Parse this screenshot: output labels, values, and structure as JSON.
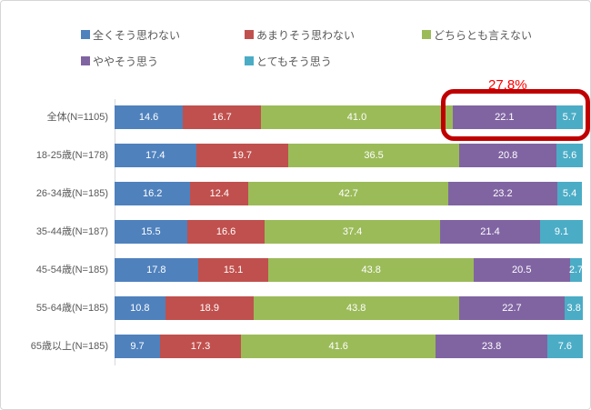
{
  "annotation": {
    "label": "27.8%",
    "text_color": "#fe0000",
    "box_color": "#c00000",
    "highlighted_segments": [
      "ややそう思う",
      "とてもそう思う"
    ],
    "highlighted_category": "全体(N=1105)"
  },
  "chart_data": {
    "type": "bar",
    "stacked": true,
    "orientation": "horizontal",
    "value_labels": true,
    "value_label_color": "#ffffff",
    "legend_position": "top",
    "grid": false,
    "xlim": [
      0,
      100
    ],
    "categories": [
      "全体(N=1105)",
      "18-25歳(N=178)",
      "26-34歳(N=185)",
      "35-44歳(N=187)",
      "45-54歳(N=185)",
      "55-64歳(N=185)",
      "65歳以上(N=185)"
    ],
    "series": [
      {
        "name": "全くそう思わない",
        "color": "#4f81bd",
        "values": [
          14.6,
          17.4,
          16.2,
          15.5,
          17.8,
          10.8,
          9.7
        ]
      },
      {
        "name": "あまりそう思わない",
        "color": "#c0504d",
        "values": [
          16.7,
          19.7,
          12.4,
          16.6,
          15.1,
          18.9,
          17.3
        ]
      },
      {
        "name": "どちらとも言えない",
        "color": "#9bbb59",
        "values": [
          41.0,
          36.5,
          42.7,
          37.4,
          43.8,
          43.8,
          41.6
        ]
      },
      {
        "name": "ややそう思う",
        "color": "#8064a2",
        "values": [
          22.1,
          20.8,
          23.2,
          21.4,
          20.5,
          22.7,
          23.8
        ]
      },
      {
        "name": "とてもそう思う",
        "color": "#4bacc6",
        "values": [
          5.7,
          5.6,
          5.4,
          9.1,
          2.7,
          3.8,
          7.6
        ]
      }
    ]
  }
}
